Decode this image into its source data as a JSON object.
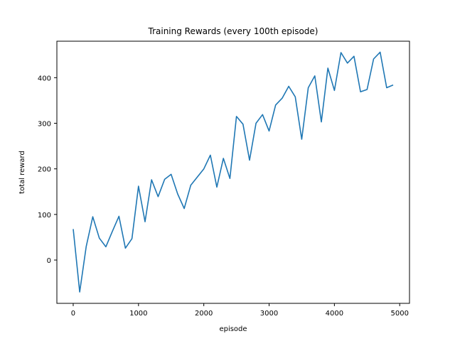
{
  "chart_data": {
    "type": "line",
    "title": "Training Rewards (every 100th episode)",
    "xlabel": "episode",
    "ylabel": "total reward",
    "xlim": [
      -250,
      5150
    ],
    "ylim": [
      -95,
      480
    ],
    "xticks": [
      0,
      1000,
      2000,
      3000,
      4000,
      5000
    ],
    "yticks": [
      0,
      100,
      200,
      300,
      400
    ],
    "grid": false,
    "series": [
      {
        "name": "total reward",
        "color": "#1f77b4",
        "x": [
          0,
          100,
          200,
          300,
          400,
          500,
          600,
          700,
          800,
          900,
          1000,
          1100,
          1200,
          1300,
          1400,
          1500,
          1600,
          1700,
          1800,
          1900,
          2000,
          2100,
          2200,
          2300,
          2400,
          2500,
          2600,
          2700,
          2800,
          2900,
          3000,
          3100,
          3200,
          3300,
          3400,
          3500,
          3600,
          3700,
          3800,
          3900,
          4000,
          4100,
          4200,
          4300,
          4400,
          4500,
          4600,
          4700,
          4800,
          4900
        ],
        "values": [
          68,
          -70,
          30,
          95,
          48,
          29,
          63,
          96,
          26,
          47,
          162,
          84,
          176,
          139,
          177,
          188,
          145,
          113,
          164,
          182,
          200,
          230,
          160,
          223,
          179,
          315,
          298,
          219,
          300,
          319,
          283,
          340,
          355,
          381,
          358,
          265,
          378,
          404,
          303,
          421,
          372,
          455,
          432,
          447,
          369,
          374,
          441,
          456,
          378,
          384
        ]
      }
    ]
  }
}
